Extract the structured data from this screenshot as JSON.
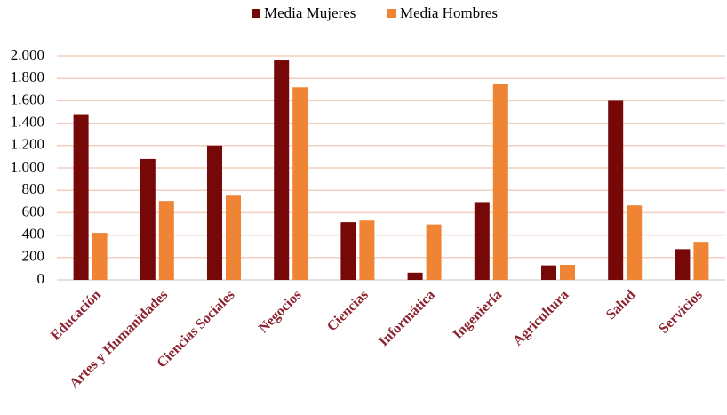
{
  "chart_data": {
    "type": "bar",
    "categories": [
      "Educación",
      "Artes y Humanidades",
      "Ciencias Sociales",
      "Negocios",
      "Ciencias",
      "Informática",
      "Ingeniería",
      "Agricultura",
      "Salud",
      "Servicios"
    ],
    "series": [
      {
        "name": "Media Mujeres",
        "color": "#760808",
        "values": [
          1480,
          1080,
          1200,
          1960,
          515,
          65,
          695,
          130,
          1600,
          275
        ]
      },
      {
        "name": "Media Hombres",
        "color": "#ee8434",
        "values": [
          420,
          705,
          760,
          1720,
          530,
          495,
          1750,
          135,
          665,
          340
        ]
      }
    ],
    "ylim": [
      0,
      2000
    ],
    "yticks": [
      0,
      200,
      400,
      600,
      800,
      {
        "value": 1000,
        "label": "1.000"
      },
      {
        "value": 1200,
        "label": "1.200"
      },
      {
        "value": 1400,
        "label": "1.400"
      },
      {
        "value": 1600,
        "label": "1.600"
      },
      {
        "value": 1800,
        "label": "1.800"
      },
      {
        "value": 2000,
        "label": "2.000"
      }
    ],
    "grid": true,
    "legend": "top"
  }
}
